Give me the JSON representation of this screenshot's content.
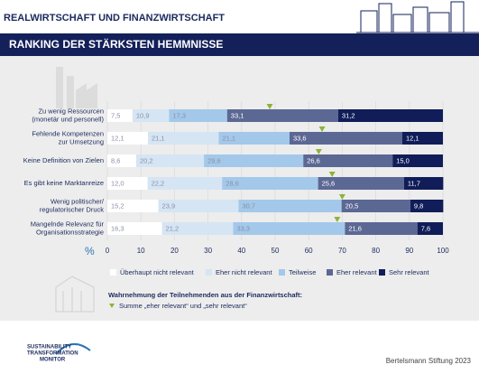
{
  "header": {
    "title": "REALWIRTSCHAFT UND FINANZWIRTSCHAFT",
    "banner": "RANKING DER STÄRKSTEN HEMMNISSE"
  },
  "chart_data": {
    "type": "stacked_barh",
    "categories": [
      [
        "Zu wenig Ressourcen",
        "(monetär und personell)"
      ],
      [
        "Fehlende Kompetenzen",
        "zur Umsetzung"
      ],
      [
        "Keine Definition von Zielen"
      ],
      [
        "Es gibt keine Marktanreize"
      ],
      [
        "Wenig politischer/",
        "regulatorischer Druck"
      ],
      [
        "Mangelnde Relevanz für",
        "Organisationsstrategie"
      ]
    ],
    "series": [
      {
        "name": "Überhaupt nicht relevant",
        "color": "#ffffff",
        "values": [
          7.5,
          12.1,
          8.6,
          12.0,
          15.2,
          16.3
        ],
        "value_labels": [
          "7,5",
          "12,1",
          "8,6",
          "12,0",
          "15,2",
          "16,3"
        ]
      },
      {
        "name": "Eher nicht relevant",
        "color": "#d5e5f4",
        "values": [
          10.9,
          21.1,
          20.2,
          22.2,
          23.9,
          21.2
        ],
        "value_labels": [
          "10,9",
          "21,1",
          "20,2",
          "22,2",
          "23,9",
          "21,2"
        ]
      },
      {
        "name": "Teilweise",
        "color": "#a3c8ea",
        "values": [
          17.3,
          21.1,
          29.6,
          28.6,
          30.7,
          33.3
        ],
        "value_labels": [
          "17,3",
          "21,1",
          "29,6",
          "28,6",
          "30,7",
          "33,3"
        ]
      },
      {
        "name": "Eher relevant",
        "color": "#5c6894",
        "values": [
          33.1,
          33.6,
          26.6,
          25.6,
          20.5,
          21.6
        ],
        "value_labels": [
          "33,1",
          "33,6",
          "26,6",
          "25,6",
          "20,5",
          "21,6"
        ]
      },
      {
        "name": "Sehr relevant",
        "color": "#101d58",
        "values": [
          31.2,
          12.1,
          15.0,
          11.7,
          9.8,
          7.6
        ],
        "value_labels": [
          "31,2",
          "12,1",
          "15,0",
          "11,7",
          "9,8",
          "7,6"
        ]
      }
    ],
    "markers": {
      "title": "Wahrnehmung der Teilnehmenden aus der Finanzwirtschaft:",
      "name": "Summe „eher relevant“ und „sehr relevant“",
      "color": "#8db33a",
      "values": [
        48.4,
        64,
        63,
        67,
        70,
        68.5
      ]
    },
    "xlim": [
      0,
      100
    ],
    "xticks": [
      0,
      10,
      20,
      30,
      40,
      50,
      60,
      70,
      80,
      90,
      100
    ],
    "x_unit": "%",
    "grid": true
  },
  "footer": {
    "logo": [
      "SUSTAINABILITY",
      "TRANSFORMATION",
      "MONITOR"
    ],
    "source": "Bertelsmann Stiftung 2023"
  }
}
